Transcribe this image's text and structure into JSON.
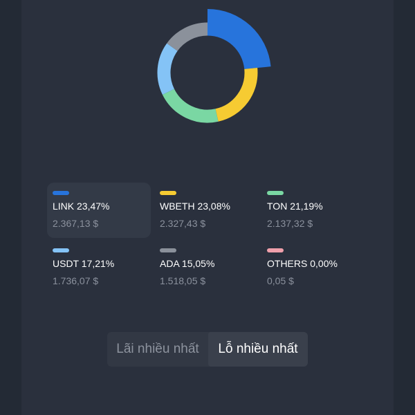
{
  "chart_data": {
    "type": "pie",
    "style": "donut",
    "slices": [
      {
        "label": "LINK",
        "percent": 23.47,
        "value": "2.367,13 $",
        "color": "#2774dc"
      },
      {
        "label": "WBETH",
        "percent": 23.08,
        "value": "2.327,43 $",
        "color": "#f6cb32"
      },
      {
        "label": "TON",
        "percent": 21.19,
        "value": "2.137,32 $",
        "color": "#7ad7a3"
      },
      {
        "label": "USDT",
        "percent": 17.21,
        "value": "1.736,07 $",
        "color": "#84c3f6"
      },
      {
        "label": "ADA",
        "percent": 15.05,
        "value": "1.518,05 $",
        "color": "#8b919b"
      },
      {
        "label": "OTHERS",
        "percent": 0.0,
        "value": "0,05 $",
        "color": "#f0a0ab"
      }
    ],
    "highlighted": "LINK"
  },
  "legend": [
    {
      "label": "LINK 23,47%",
      "value": "2.367,13 $",
      "color": "#2774dc"
    },
    {
      "label": "WBETH 23,08%",
      "value": "2.327,43 $",
      "color": "#f6cb32"
    },
    {
      "label": "TON 21,19%",
      "value": "2.137,32 $",
      "color": "#7ad7a3"
    },
    {
      "label": "USDT 17,21%",
      "value": "1.736,07 $",
      "color": "#84c3f6"
    },
    {
      "label": "ADA 15,05%",
      "value": "1.518,05 $",
      "color": "#8b919b"
    },
    {
      "label": "OTHERS 0,00%",
      "value": "0,05 $",
      "color": "#f0a0ab"
    }
  ],
  "toggle": {
    "left_label": "Lãi nhiều nhất",
    "right_label": "Lỗ nhiều nhất",
    "selected": "right"
  }
}
